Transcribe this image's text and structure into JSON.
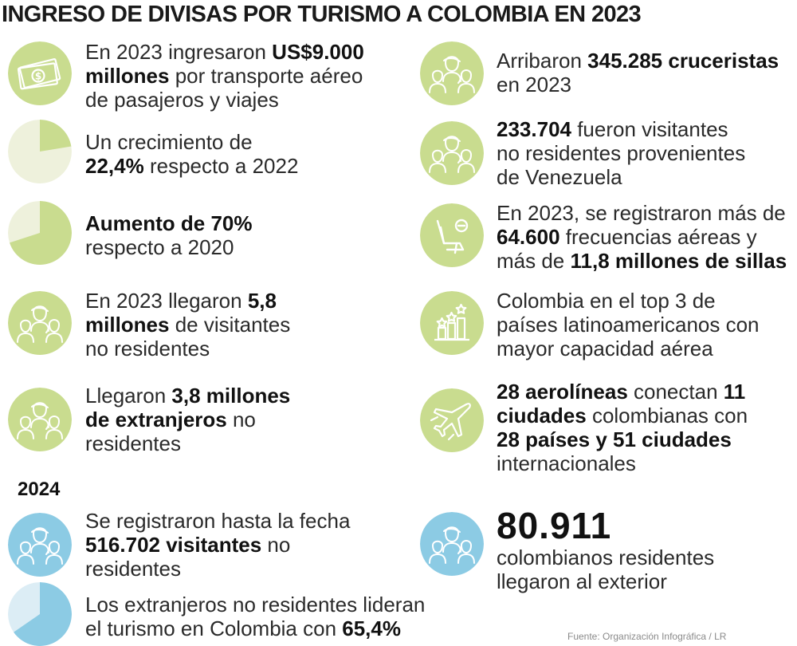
{
  "title": "INGRESO DE DIVISAS POR TURISMO A COLOMBIA EN 2023",
  "colors": {
    "green": "#c9dc8f",
    "green_light": "#eef1dc",
    "blue": "#8ccbe4",
    "blue_light": "#dcedf5",
    "line": "#ffffff"
  },
  "left_2023": [
    {
      "icon": "money-icon",
      "parts": [
        "En 2023 ingresaron ",
        "US$9.000",
        "millones",
        " por transporte aéreo",
        "de pasajeros y viajes"
      ]
    },
    {
      "icon": "pie-chart-icon",
      "percent": 22.4,
      "parts": [
        "Un crecimiento de",
        "22,4%",
        " respecto a 2022"
      ]
    },
    {
      "icon": "pie-chart-icon",
      "percent": 70,
      "parts": [
        "Aumento de 70%",
        "respecto a 2020"
      ]
    },
    {
      "icon": "people-icon",
      "parts": [
        "En 2023 llegaron ",
        "5,8",
        "millones",
        " de visitantes",
        "no residentes"
      ]
    },
    {
      "icon": "people-icon",
      "parts": [
        "Llegaron ",
        "3,8 millones",
        "de extranjeros",
        " no",
        "residentes"
      ]
    }
  ],
  "year_2024": "2024",
  "left_2024": [
    {
      "icon": "people-icon",
      "parts": [
        "Se registraron hasta la fecha",
        "516.702 visitantes",
        " no",
        "residentes"
      ]
    },
    {
      "icon": "pie-chart-icon",
      "percent": 65.4,
      "parts": [
        "Los extranjeros no residentes lideran",
        "el turismo en Colombia con ",
        "65,4%"
      ]
    }
  ],
  "right": [
    {
      "icon": "people-icon",
      "parts": [
        "Arribaron ",
        "345.285 cruceristas",
        "en 2023"
      ]
    },
    {
      "icon": "people-icon",
      "parts": [
        "233.704",
        " fueron visitantes",
        "no residentes provenientes",
        "de Venezuela"
      ]
    },
    {
      "icon": "airplane-seat-icon",
      "parts": [
        "En 2023, se registraron más de",
        "64.600",
        " frecuencias aéreas y",
        "más de ",
        "11,8 millones de sillas"
      ]
    },
    {
      "icon": "ranking-chart-icon",
      "parts": [
        "Colombia en el top 3 de",
        "países latinoamericanos con",
        "mayor capacidad aérea"
      ]
    },
    {
      "icon": "airplane-icon",
      "parts": [
        "28 aerolíneas",
        " conectan ",
        "11",
        "ciudades",
        " colombianas con",
        "28 países y 51 ciudades",
        "internacionales"
      ]
    }
  ],
  "outbound": {
    "icon": "people-icon",
    "number": "80.911",
    "line1": "colombianos residentes",
    "line2": "llegaron al exterior"
  },
  "source": "Fuente: Organización Infográfica / LR"
}
